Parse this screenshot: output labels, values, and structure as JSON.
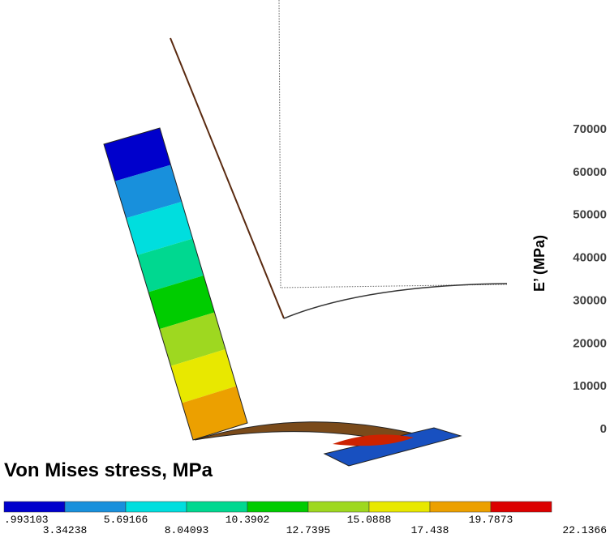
{
  "axis": {
    "label": "E’ (MPa)",
    "ticks": [
      70000,
      60000,
      50000,
      40000,
      30000,
      20000,
      10000,
      0
    ]
  },
  "legend": {
    "title": "Von Mises stress, MPa",
    "labels": [
      ".993103",
      "3.34238",
      "5.69166",
      "8.04093",
      "10.3902",
      "12.7395",
      "15.0888",
      "17.438",
      "19.7873",
      "22.1366"
    ],
    "colors": [
      "#0000cc",
      "#1890dc",
      "#00dede",
      "#00d890",
      "#00cc00",
      "#9ed820",
      "#e8e800",
      "#eca000",
      "#dc0000"
    ]
  }
}
